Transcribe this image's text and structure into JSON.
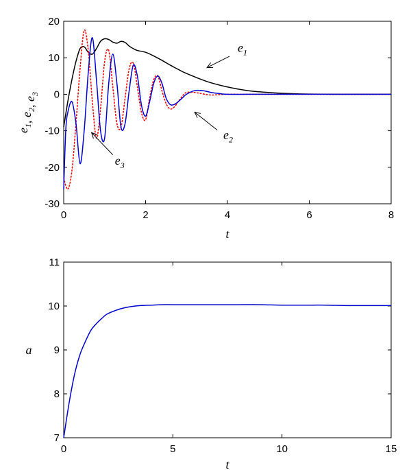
{
  "chart_data": [
    {
      "type": "line",
      "xlabel": "t",
      "ylabel_parts": [
        {
          "base": "e",
          "sub": "1"
        },
        {
          "sep": ", "
        },
        {
          "base": "e",
          "sub": "2"
        },
        {
          "sep": ", "
        },
        {
          "base": "e",
          "sub": "3"
        }
      ],
      "xlim": [
        0,
        8
      ],
      "ylim": [
        -30,
        20
      ],
      "xticks": [
        0,
        2,
        4,
        6,
        8
      ],
      "yticks": [
        -30,
        -20,
        -10,
        0,
        10,
        20
      ],
      "grid": false,
      "series": [
        {
          "name": "e1",
          "color": "#000000",
          "style": "solid",
          "x": [
            0,
            0.1,
            0.2,
            0.3,
            0.4,
            0.5,
            0.6,
            0.7,
            0.8,
            0.9,
            1.0,
            1.1,
            1.2,
            1.3,
            1.4,
            1.5,
            1.6,
            1.7,
            1.8,
            2.0,
            2.2,
            2.4,
            2.6,
            2.8,
            3.0,
            3.5,
            4.0,
            4.5,
            5.0,
            5.5,
            6.0,
            7.0,
            8.0
          ],
          "y": [
            -9,
            -2,
            4,
            9,
            12.5,
            13,
            11.5,
            11,
            12.5,
            14.5,
            15.2,
            15,
            14.3,
            14,
            14.5,
            14.2,
            13.2,
            12.5,
            12,
            11.5,
            10.5,
            9.3,
            8,
            6.8,
            5.7,
            3.5,
            2,
            1,
            0.5,
            0.2,
            0.05,
            0,
            0
          ]
        },
        {
          "name": "e2",
          "color": "#ff0000",
          "style": "dotted",
          "x": [
            0,
            0.1,
            0.2,
            0.3,
            0.4,
            0.5,
            0.6,
            0.7,
            0.8,
            0.9,
            1.0,
            1.1,
            1.2,
            1.3,
            1.4,
            1.5,
            1.6,
            1.7,
            1.8,
            1.9,
            2.0,
            2.1,
            2.2,
            2.3,
            2.4,
            2.5,
            2.6,
            2.7,
            2.8,
            2.9,
            3.0,
            3.2,
            3.4,
            3.6,
            3.8,
            4.0,
            4.5,
            5.0,
            6.0,
            8.0
          ],
          "y": [
            -23,
            -26,
            -21,
            -8,
            7,
            17.5,
            12,
            -2,
            -12,
            -4,
            9,
            12,
            2,
            -8,
            -9,
            -1,
            7,
            8.5,
            2,
            -5,
            -7,
            -1,
            4,
            5,
            1,
            -2.5,
            -4,
            -3.5,
            -2,
            -0.5,
            0.5,
            0.5,
            0.1,
            -0.2,
            -0.1,
            0,
            0,
            0,
            0,
            0
          ]
        },
        {
          "name": "e3",
          "color": "#0000cc",
          "style": "solid",
          "x": [
            0,
            0.05,
            0.1,
            0.2,
            0.3,
            0.4,
            0.5,
            0.6,
            0.7,
            0.8,
            0.9,
            1.0,
            1.1,
            1.2,
            1.3,
            1.4,
            1.5,
            1.6,
            1.7,
            1.8,
            1.9,
            2.0,
            2.1,
            2.2,
            2.3,
            2.4,
            2.5,
            2.6,
            2.7,
            2.8,
            2.9,
            3.0,
            3.2,
            3.4,
            3.6,
            3.8,
            4.0,
            4.5,
            5.0,
            6.0,
            8.0
          ],
          "y": [
            -26,
            -10,
            -5,
            -2,
            -8,
            -19,
            -10,
            6,
            15.5,
            4,
            -10,
            -12,
            3,
            11,
            3,
            -9,
            -8,
            1,
            8,
            5,
            -3,
            -6,
            -2,
            3,
            5,
            3,
            -1,
            -2.8,
            -2.8,
            -2,
            -1,
            0,
            1,
            1,
            0.5,
            0.2,
            0,
            0,
            0,
            0,
            0
          ]
        }
      ],
      "annotations": [
        {
          "target": "e1",
          "base": "e",
          "sub": "1",
          "text_at": [
            4.25,
            11.6
          ],
          "arrow_from": [
            4.05,
            10.4
          ],
          "arrow_to": [
            3.5,
            7.3
          ]
        },
        {
          "target": "e2",
          "base": "e",
          "sub": "2",
          "text_at": [
            3.9,
            -12.2
          ],
          "arrow_from": [
            3.75,
            -9.8
          ],
          "arrow_to": [
            3.2,
            -4.9
          ]
        },
        {
          "target": "e3",
          "base": "e",
          "sub": "3",
          "text_at": [
            1.25,
            -19.3
          ],
          "arrow_from": [
            1.2,
            -16.6
          ],
          "arrow_to": [
            0.68,
            -10.5
          ]
        }
      ]
    },
    {
      "type": "line",
      "xlabel": "t",
      "ylabel": "a",
      "xlim": [
        0,
        15
      ],
      "ylim": [
        7,
        11
      ],
      "xticks": [
        0,
        5,
        10,
        15
      ],
      "yticks": [
        7,
        8,
        9,
        10,
        11
      ],
      "grid": false,
      "series": [
        {
          "color": "#0000cc",
          "style": "solid",
          "x": [
            0,
            0.25,
            0.5,
            0.75,
            1.0,
            1.25,
            1.5,
            1.75,
            2.0,
            2.5,
            3.0,
            3.5,
            4.0,
            4.5,
            5.0,
            6.0,
            7.0,
            8.0,
            9.0,
            10.0,
            11.0,
            12.0,
            13.0,
            14.0,
            15.0
          ],
          "y": [
            7.0,
            7.8,
            8.45,
            8.9,
            9.2,
            9.45,
            9.6,
            9.72,
            9.82,
            9.92,
            9.98,
            10.01,
            10.02,
            10.03,
            10.03,
            10.03,
            10.03,
            10.03,
            10.03,
            10.02,
            10.02,
            10.02,
            10.01,
            10.01,
            10.01
          ]
        }
      ]
    }
  ]
}
